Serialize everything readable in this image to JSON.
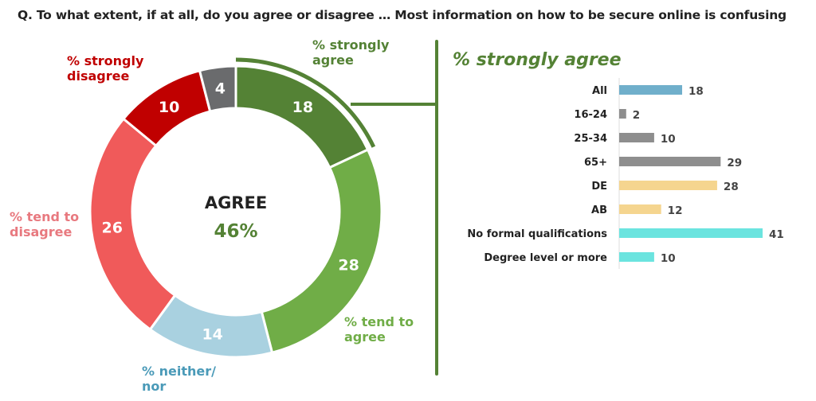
{
  "question": "Q.   To what extent, if at all, do you agree or disagree … Most information on how to be secure online is confusing",
  "chart_data": [
    {
      "type": "pie",
      "donut": true,
      "center_label": "AGREE",
      "center_value": "46%",
      "slices": [
        {
          "label": "% strongly agree",
          "value": 18,
          "color": "#548235",
          "label_color": "#548235"
        },
        {
          "label": "% tend to agree",
          "value": 28,
          "color": "#70AD47",
          "label_color": "#70AD47"
        },
        {
          "label": "% neither/ nor",
          "value": 14,
          "color": "#A9D1E0",
          "label_color": "#4A9AB8"
        },
        {
          "label": "% tend to disagree",
          "value": 26,
          "color": "#F05A5A",
          "label_color": "#E8797F"
        },
        {
          "label": "% strongly disagree",
          "value": 10,
          "color": "#C00000",
          "label_color": "#C00000"
        },
        {
          "label": "",
          "value": 4,
          "color": "#6A6B6D",
          "label_color": ""
        }
      ]
    },
    {
      "type": "bar",
      "orientation": "horizontal",
      "title": "% strongly agree",
      "categories": [
        "All",
        "16-24",
        "25-34",
        "65+",
        "DE",
        "AB",
        "No formal qualifications",
        "Degree level or more"
      ],
      "values": [
        18,
        2,
        10,
        29,
        28,
        12,
        41,
        10
      ],
      "colors": [
        "#70AFCB",
        "#8E8E8E",
        "#8E8E8E",
        "#8E8E8E",
        "#F5D58F",
        "#F5D58F",
        "#6BE4DF",
        "#6BE4DF"
      ],
      "grid": false
    }
  ],
  "accent": "#548235"
}
